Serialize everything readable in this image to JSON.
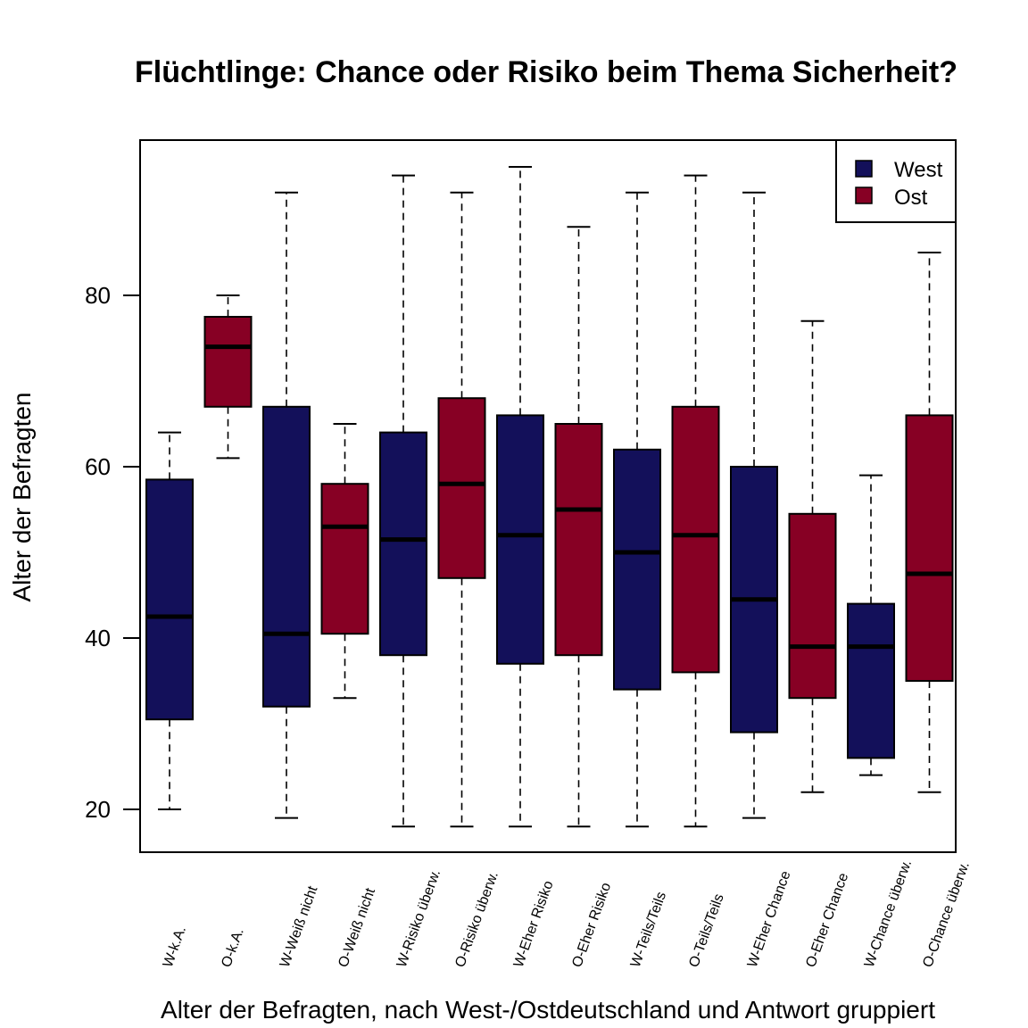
{
  "chart_data": {
    "type": "boxplot",
    "title": "Flüchtlinge: Chance oder Risiko beim Thema Sicherheit?",
    "xlabel": "Alter der Befragten, nach West-/Ostdeutschland und Antwort gruppiert",
    "ylabel": "Alter der Befragten",
    "ylim": [
      15,
      98
    ],
    "yticks": [
      20,
      40,
      60,
      80
    ],
    "grid": false,
    "legend": {
      "position": "top-right",
      "entries": [
        {
          "label": "West",
          "color": "#13105a"
        },
        {
          "label": "Ost",
          "color": "#870024"
        }
      ]
    },
    "colors": {
      "West": "#13105a",
      "Ost": "#870024"
    },
    "boxes": [
      {
        "label": "W-k.A.",
        "group": "West",
        "min": 20,
        "q1": 30.5,
        "median": 42.5,
        "q3": 58.5,
        "max": 64
      },
      {
        "label": "O-k.A.",
        "group": "Ost",
        "min": 61,
        "q1": 67,
        "median": 74,
        "q3": 77.5,
        "max": 80
      },
      {
        "label": "W-Weiß nicht",
        "group": "West",
        "min": 19,
        "q1": 32,
        "median": 40.5,
        "q3": 67,
        "max": 92
      },
      {
        "label": "O-Weiß nicht",
        "group": "Ost",
        "min": 33,
        "q1": 40.5,
        "median": 53,
        "q3": 58,
        "max": 65
      },
      {
        "label": "W-Risiko überw.",
        "group": "West",
        "min": 18,
        "q1": 38,
        "median": 51.5,
        "q3": 64,
        "max": 94
      },
      {
        "label": "O-Risiko überw.",
        "group": "Ost",
        "min": 18,
        "q1": 47,
        "median": 58,
        "q3": 68,
        "max": 92
      },
      {
        "label": "W-Eher Risiko",
        "group": "West",
        "min": 18,
        "q1": 37,
        "median": 52,
        "q3": 66,
        "max": 95
      },
      {
        "label": "O-Eher Risiko",
        "group": "Ost",
        "min": 18,
        "q1": 38,
        "median": 55,
        "q3": 65,
        "max": 88
      },
      {
        "label": "W-Teils/Teils",
        "group": "West",
        "min": 18,
        "q1": 34,
        "median": 50,
        "q3": 62,
        "max": 92
      },
      {
        "label": "O-Teils/Teils",
        "group": "Ost",
        "min": 18,
        "q1": 36,
        "median": 52,
        "q3": 67,
        "max": 94
      },
      {
        "label": "W-Eher Chance",
        "group": "West",
        "min": 19,
        "q1": 29,
        "median": 44.5,
        "q3": 60,
        "max": 92
      },
      {
        "label": "O-Eher Chance",
        "group": "Ost",
        "min": 22,
        "q1": 33,
        "median": 39,
        "q3": 54.5,
        "max": 77
      },
      {
        "label": "W-Chance überw.",
        "group": "West",
        "min": 24,
        "q1": 26,
        "median": 39,
        "q3": 44,
        "max": 59
      },
      {
        "label": "O-Chance überw.",
        "group": "Ost",
        "min": 22,
        "q1": 35,
        "median": 47.5,
        "q3": 66,
        "max": 85
      }
    ]
  }
}
